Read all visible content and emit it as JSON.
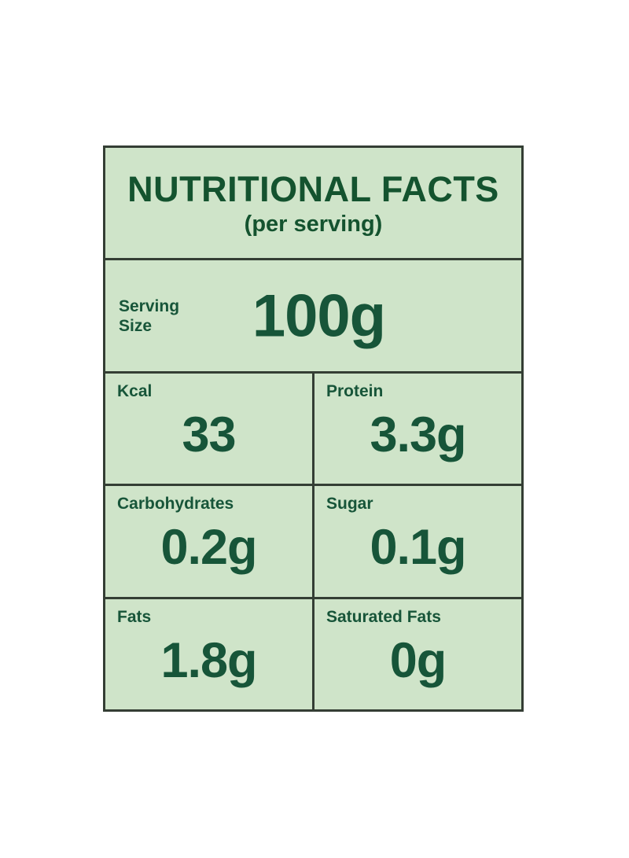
{
  "colors": {
    "page_background": "#ffffff",
    "panel_background": "#cfe4c9",
    "text_dark_green": "#175539",
    "grid_border": "#343e34"
  },
  "header": {
    "title": "NUTRITIONAL FACTS",
    "subtitle": "(per serving)"
  },
  "serving": {
    "label_line1": "Serving",
    "label_line2": "Size",
    "value": "100g"
  },
  "nutrients": [
    {
      "label": "Kcal",
      "value": "33"
    },
    {
      "label": "Protein",
      "value": "3.3g"
    },
    {
      "label": "Carbohydrates",
      "value": "0.2g"
    },
    {
      "label": "Sugar",
      "value": "0.1g"
    },
    {
      "label": "Fats",
      "value": "1.8g"
    },
    {
      "label": "Saturated Fats",
      "value": "0g"
    }
  ]
}
